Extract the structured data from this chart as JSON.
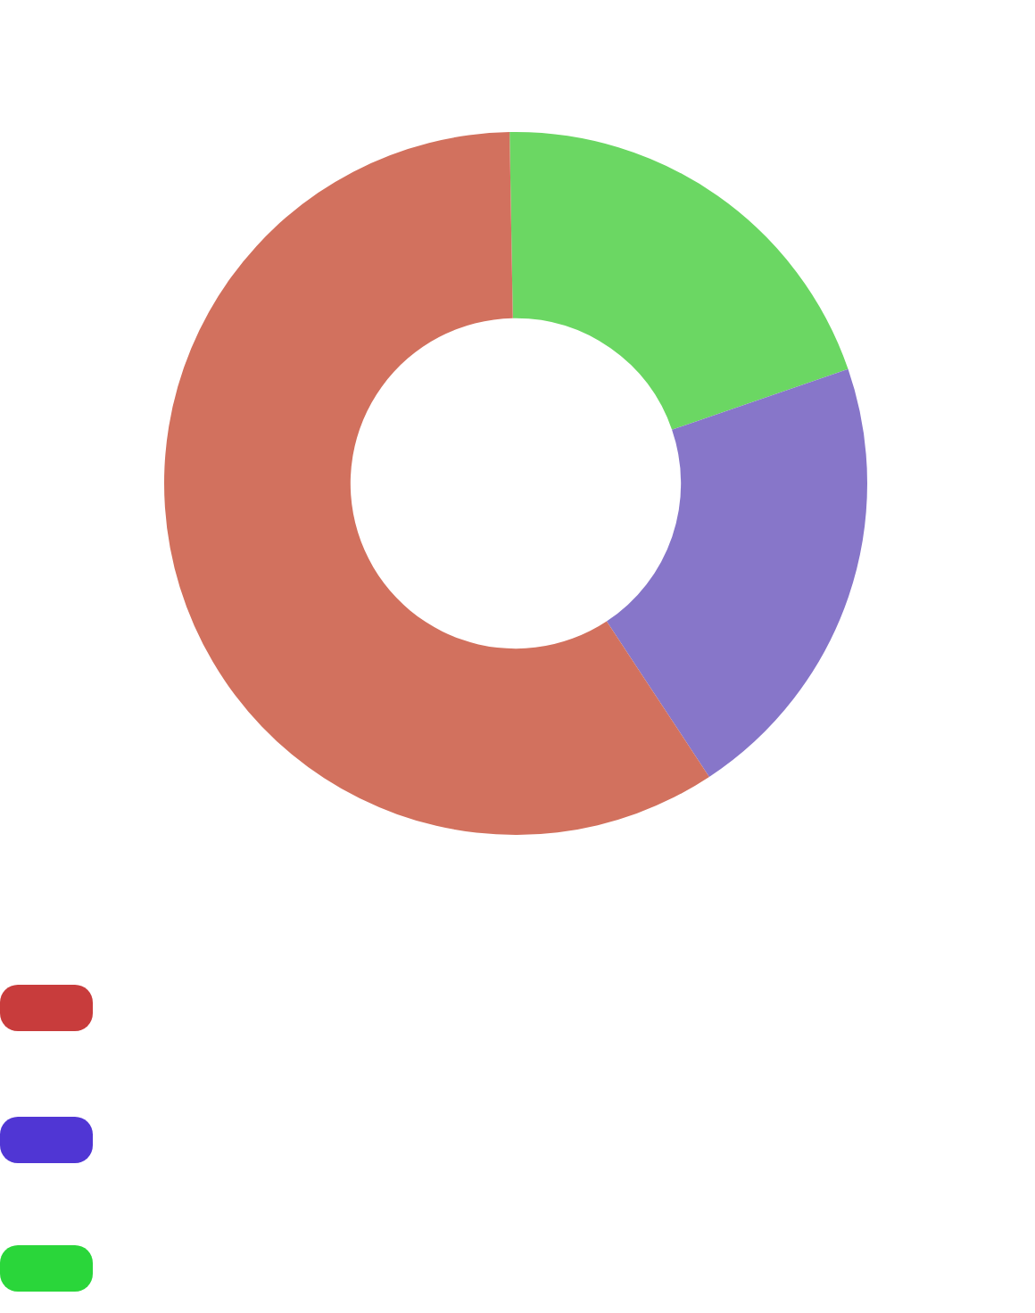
{
  "chart_data": {
    "type": "donut",
    "categories": [
      null,
      null,
      null
    ],
    "values": [
      59,
      21,
      20
    ],
    "colors": [
      "#d2715e",
      "#8776c9",
      "#6bd763"
    ]
  }
}
